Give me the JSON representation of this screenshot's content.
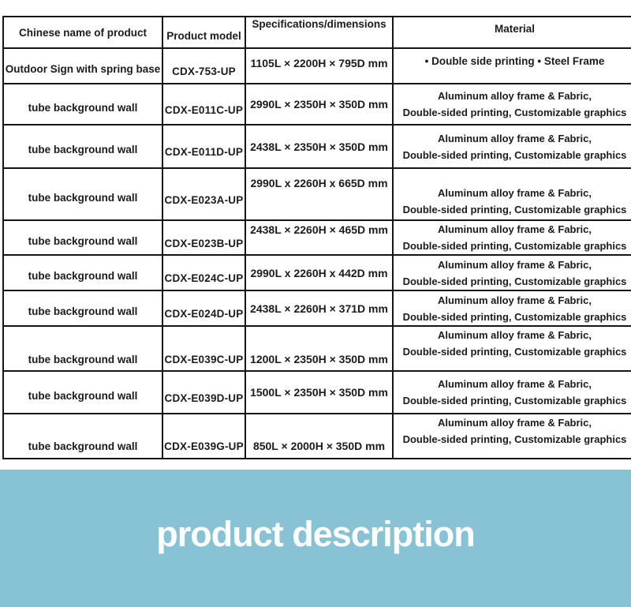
{
  "table": {
    "columns": [
      "Chinese name of product",
      "Product model",
      "Specifications/dimensions",
      "Material"
    ],
    "rows": [
      {
        "name": "Outdoor Sign with spring base",
        "model": "CDX-753-UP",
        "spec": "1105L × 2200H × 795D mm",
        "material_lines": [
          "• Double side printing • Steel Frame"
        ]
      },
      {
        "name": "tube background wall",
        "model": "CDX-E011C-UP",
        "spec": "2990L × 2350H × 350D mm",
        "material_lines": [
          "Aluminum alloy frame & Fabric,",
          "Double-sided printing, Customizable graphics"
        ]
      },
      {
        "name": "tube background wall",
        "model": "CDX-E011D-UP",
        "spec": "2438L × 2350H × 350D mm",
        "material_lines": [
          "Aluminum alloy frame & Fabric,",
          "Double-sided printing, Customizable graphics"
        ]
      },
      {
        "name": "tube background wall",
        "model": "CDX-E023A-UP",
        "spec": "2990L x 2260H x 665D mm",
        "material_lines": [
          "Aluminum alloy frame & Fabric,",
          "Double-sided printing, Customizable graphics"
        ]
      },
      {
        "name": "tube background wall",
        "model": "CDX-E023B-UP",
        "spec": "2438L × 2260H × 465D mm",
        "material_lines": [
          "Aluminum alloy frame & Fabric,",
          "Double-sided printing, Customizable graphics"
        ]
      },
      {
        "name": "tube background wall",
        "model": "CDX-E024C-UP",
        "spec": "2990L x 2260H x 442D mm",
        "material_lines": [
          "Aluminum alloy frame & Fabric,",
          "Double-sided printing, Customizable graphics"
        ]
      },
      {
        "name": "tube background wall",
        "model": "CDX-E024D-UP",
        "spec": "2438L × 2260H × 371D mm",
        "material_lines": [
          "Aluminum alloy frame & Fabric,",
          "Double-sided printing, Customizable graphics"
        ]
      },
      {
        "name": "tube background wall",
        "model": "CDX-E039C-UP",
        "spec": "1200L × 2350H × 350D mm",
        "material_lines": [
          "Aluminum alloy frame & Fabric,",
          "Double-sided printing, Customizable graphics"
        ]
      },
      {
        "name": "tube background wall",
        "model": "CDX-E039D-UP",
        "spec": "1500L × 2350H × 350D mm",
        "material_lines": [
          "Aluminum alloy frame & Fabric,",
          "Double-sided printing, Customizable graphics"
        ]
      },
      {
        "name": "tube background wall",
        "model": "CDX-E039G-UP",
        "spec": "850L × 2000H × 350D mm",
        "material_lines": [
          "Aluminum alloy frame & Fabric,",
          "Double-sided printing, Customizable graphics"
        ]
      }
    ]
  },
  "banner": {
    "label": "product description",
    "background_color": "#87c3d5",
    "text_color": "#ffffff"
  }
}
